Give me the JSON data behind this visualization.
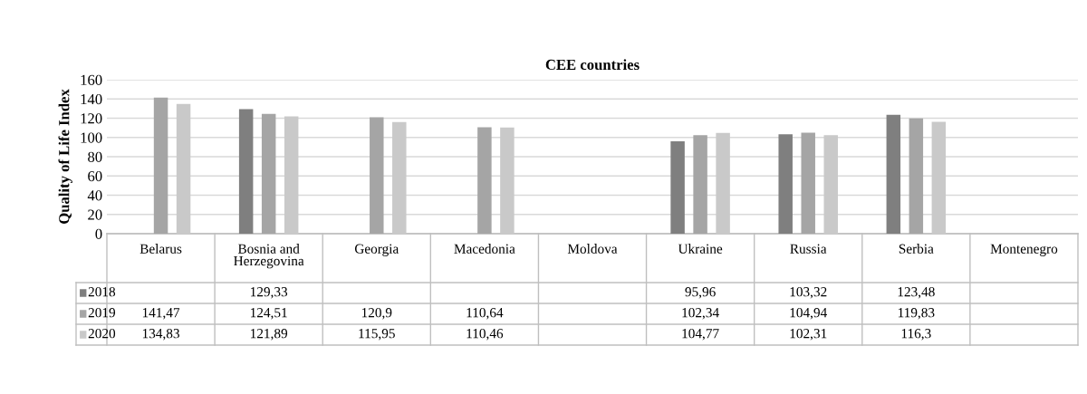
{
  "chart_data": {
    "type": "bar",
    "title": "CEE countries",
    "ylabel": "Quality of Life Index",
    "categories": [
      "Belarus",
      "Bosnia and\nHerzegovina",
      "Georgia",
      "Macedonia",
      "Moldova",
      "Ukraine",
      "Russia",
      "Serbia",
      "Montenegro"
    ],
    "series": [
      {
        "name": "2018",
        "color": "#7f7f7f",
        "values": [
          null,
          129.33,
          null,
          null,
          null,
          95.96,
          103.32,
          123.48,
          null
        ],
        "value_labels": [
          null,
          "129,33",
          null,
          null,
          null,
          "95,96",
          "103,32",
          "123,48",
          null
        ]
      },
      {
        "name": "2019",
        "color": "#a5a5a5",
        "values": [
          141.47,
          124.51,
          120.9,
          110.64,
          null,
          102.34,
          104.94,
          119.83,
          null
        ],
        "value_labels": [
          "141,47",
          "124,51",
          "120,9",
          "110,64",
          null,
          "102,34",
          "104,94",
          "119,83",
          null
        ]
      },
      {
        "name": "2020",
        "color": "#c9c9c9",
        "values": [
          134.83,
          121.89,
          115.95,
          110.46,
          null,
          104.77,
          102.31,
          116.3,
          null
        ],
        "value_labels": [
          "134,83",
          "121,89",
          "115,95",
          "110,46",
          null,
          "104,77",
          "102,31",
          "116,3",
          null
        ]
      }
    ],
    "ylim": [
      0,
      160
    ],
    "yticks": [
      0,
      20,
      40,
      60,
      80,
      100,
      120,
      140,
      160
    ],
    "grid": "y",
    "legend": "bottom"
  }
}
